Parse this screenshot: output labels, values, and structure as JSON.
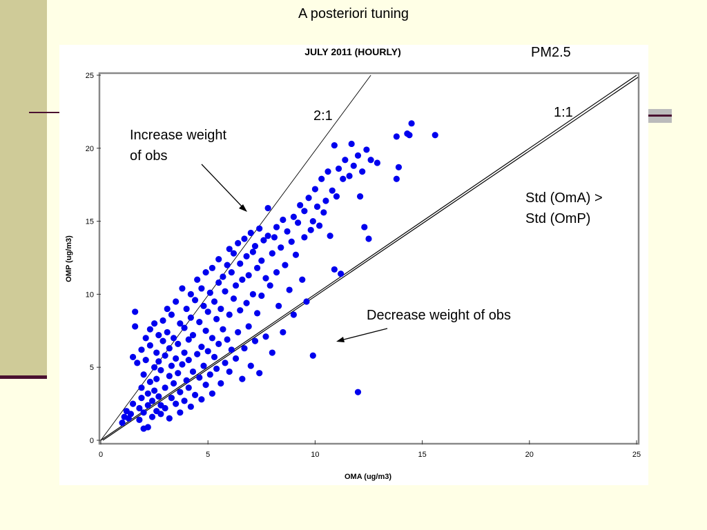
{
  "slide": {
    "title": "A posteriori tuning",
    "species_label": "PM2.5"
  },
  "annotations": {
    "ratio_2_1": "2:1",
    "ratio_1_1": "1:1",
    "increase_line1": "Increase weight",
    "increase_line2": "of obs",
    "decrease": "Decrease weight of obs",
    "std_line1": "Std (OmA) >",
    "std_line2": "Std (OmP)"
  },
  "colors": {
    "points": "#0000ee",
    "background": "#ffffe6",
    "accent": "#cfcb98",
    "deco": "#4a1030"
  },
  "chart_data": {
    "type": "scatter",
    "title": "JULY 2011  (HOURLY)",
    "xlabel": "OMA (ug/m3)",
    "ylabel": "OMP (ug/m3)",
    "xlim": [
      0,
      25
    ],
    "ylim": [
      0,
      25
    ],
    "xticks": [
      "0",
      "5",
      "10",
      "15",
      "20",
      "25"
    ],
    "yticks": [
      "0",
      "5",
      "10",
      "15",
      "20",
      "25"
    ],
    "reference_lines": [
      {
        "label": "1:1",
        "slope": 1
      },
      {
        "label": "2:1",
        "slope": 2
      }
    ],
    "points": [
      [
        1.0,
        1.2
      ],
      [
        1.1,
        1.6
      ],
      [
        1.2,
        2.0
      ],
      [
        1.3,
        1.5
      ],
      [
        1.4,
        1.8
      ],
      [
        1.5,
        2.5
      ],
      [
        1.5,
        5.7
      ],
      [
        1.6,
        8.8
      ],
      [
        1.6,
        7.8
      ],
      [
        1.7,
        5.3
      ],
      [
        1.8,
        1.4
      ],
      [
        1.8,
        2.2
      ],
      [
        1.9,
        2.9
      ],
      [
        1.9,
        3.6
      ],
      [
        1.9,
        6.2
      ],
      [
        2.0,
        0.8
      ],
      [
        2.0,
        1.9
      ],
      [
        2.0,
        4.5
      ],
      [
        2.1,
        5.5
      ],
      [
        2.1,
        7.0
      ],
      [
        2.2,
        0.9
      ],
      [
        2.2,
        2.4
      ],
      [
        2.2,
        3.2
      ],
      [
        2.3,
        4.0
      ],
      [
        2.3,
        6.5
      ],
      [
        2.3,
        7.6
      ],
      [
        2.4,
        1.6
      ],
      [
        2.4,
        2.7
      ],
      [
        2.5,
        3.4
      ],
      [
        2.5,
        5.0
      ],
      [
        2.5,
        8.0
      ],
      [
        2.6,
        2.0
      ],
      [
        2.6,
        4.2
      ],
      [
        2.6,
        6.0
      ],
      [
        2.7,
        3.0
      ],
      [
        2.7,
        5.4
      ],
      [
        2.7,
        7.2
      ],
      [
        2.8,
        1.8
      ],
      [
        2.8,
        2.4
      ],
      [
        2.8,
        4.8
      ],
      [
        2.9,
        6.8
      ],
      [
        2.9,
        8.2
      ],
      [
        3.0,
        2.2
      ],
      [
        3.0,
        3.6
      ],
      [
        3.0,
        5.8
      ],
      [
        3.1,
        7.4
      ],
      [
        3.1,
        9.0
      ],
      [
        3.2,
        1.5
      ],
      [
        3.2,
        4.4
      ],
      [
        3.2,
        6.3
      ],
      [
        3.3,
        2.9
      ],
      [
        3.3,
        5.1
      ],
      [
        3.3,
        8.6
      ],
      [
        3.4,
        3.9
      ],
      [
        3.4,
        7.0
      ],
      [
        3.5,
        2.5
      ],
      [
        3.5,
        5.6
      ],
      [
        3.5,
        9.5
      ],
      [
        3.6,
        4.6
      ],
      [
        3.6,
        6.6
      ],
      [
        3.7,
        1.9
      ],
      [
        3.7,
        3.3
      ],
      [
        3.7,
        8.0
      ],
      [
        3.8,
        5.2
      ],
      [
        3.8,
        10.4
      ],
      [
        3.9,
        2.7
      ],
      [
        3.9,
        6.0
      ],
      [
        3.9,
        7.7
      ],
      [
        4.0,
        4.1
      ],
      [
        4.0,
        9.0
      ],
      [
        4.1,
        3.6
      ],
      [
        4.1,
        5.5
      ],
      [
        4.1,
        6.9
      ],
      [
        4.2,
        2.3
      ],
      [
        4.2,
        8.4
      ],
      [
        4.2,
        10.0
      ],
      [
        4.3,
        4.7
      ],
      [
        4.3,
        7.2
      ],
      [
        4.4,
        3.1
      ],
      [
        4.4,
        9.6
      ],
      [
        4.5,
        5.9
      ],
      [
        4.5,
        11.0
      ],
      [
        4.6,
        4.3
      ],
      [
        4.6,
        8.1
      ],
      [
        4.7,
        2.8
      ],
      [
        4.7,
        6.4
      ],
      [
        4.7,
        10.4
      ],
      [
        4.8,
        5.1
      ],
      [
        4.8,
        9.2
      ],
      [
        4.9,
        3.8
      ],
      [
        4.9,
        7.5
      ],
      [
        4.9,
        11.5
      ],
      [
        5.0,
        6.1
      ],
      [
        5.0,
        8.8
      ],
      [
        5.1,
        4.5
      ],
      [
        5.1,
        10.1
      ],
      [
        5.2,
        3.2
      ],
      [
        5.2,
        7.0
      ],
      [
        5.2,
        11.8
      ],
      [
        5.3,
        5.7
      ],
      [
        5.3,
        9.5
      ],
      [
        5.4,
        4.9
      ],
      [
        5.4,
        8.3
      ],
      [
        5.5,
        6.6
      ],
      [
        5.5,
        10.8
      ],
      [
        5.5,
        12.4
      ],
      [
        5.6,
        3.9
      ],
      [
        5.6,
        9.0
      ],
      [
        5.7,
        7.6
      ],
      [
        5.7,
        11.2
      ],
      [
        5.8,
        5.3
      ],
      [
        5.8,
        10.2
      ],
      [
        5.9,
        6.9
      ],
      [
        5.9,
        12.0
      ],
      [
        6.0,
        4.7
      ],
      [
        6.0,
        8.6
      ],
      [
        6.0,
        13.1
      ],
      [
        6.1,
        6.2
      ],
      [
        6.1,
        11.5
      ],
      [
        6.2,
        9.7
      ],
      [
        6.2,
        12.8
      ],
      [
        6.3,
        5.6
      ],
      [
        6.3,
        10.6
      ],
      [
        6.4,
        7.4
      ],
      [
        6.4,
        13.5
      ],
      [
        6.5,
        8.9
      ],
      [
        6.5,
        12.1
      ],
      [
        6.6,
        4.2
      ],
      [
        6.6,
        11.0
      ],
      [
        6.7,
        6.3
      ],
      [
        6.7,
        13.8
      ],
      [
        6.8,
        9.4
      ],
      [
        6.8,
        12.6
      ],
      [
        6.9,
        7.8
      ],
      [
        6.9,
        11.3
      ],
      [
        7.0,
        5.1
      ],
      [
        7.0,
        14.2
      ],
      [
        7.1,
        10.0
      ],
      [
        7.1,
        12.9
      ],
      [
        7.2,
        6.8
      ],
      [
        7.2,
        13.3
      ],
      [
        7.3,
        8.7
      ],
      [
        7.3,
        11.8
      ],
      [
        7.4,
        14.5
      ],
      [
        7.4,
        4.6
      ],
      [
        7.5,
        12.3
      ],
      [
        7.5,
        9.9
      ],
      [
        7.6,
        13.7
      ],
      [
        7.7,
        7.1
      ],
      [
        7.7,
        11.1
      ],
      [
        7.8,
        14.0
      ],
      [
        7.8,
        15.9
      ],
      [
        7.9,
        10.6
      ],
      [
        8.0,
        12.8
      ],
      [
        8.0,
        6.0
      ],
      [
        8.1,
        13.9
      ],
      [
        8.2,
        11.5
      ],
      [
        8.2,
        14.6
      ],
      [
        8.3,
        9.2
      ],
      [
        8.4,
        13.2
      ],
      [
        8.5,
        15.1
      ],
      [
        8.5,
        7.4
      ],
      [
        8.6,
        12.0
      ],
      [
        8.7,
        14.3
      ],
      [
        8.8,
        10.3
      ],
      [
        8.9,
        13.6
      ],
      [
        9.0,
        15.3
      ],
      [
        9.0,
        8.6
      ],
      [
        9.1,
        12.7
      ],
      [
        9.2,
        14.9
      ],
      [
        9.3,
        16.1
      ],
      [
        9.4,
        11.0
      ],
      [
        9.5,
        13.9
      ],
      [
        9.5,
        15.7
      ],
      [
        9.6,
        9.5
      ],
      [
        9.7,
        16.6
      ],
      [
        9.8,
        14.4
      ],
      [
        9.9,
        15.0
      ],
      [
        9.9,
        5.8
      ],
      [
        10.0,
        17.2
      ],
      [
        10.1,
        16.0
      ],
      [
        10.2,
        14.7
      ],
      [
        10.3,
        17.9
      ],
      [
        10.4,
        15.6
      ],
      [
        10.5,
        16.4
      ],
      [
        10.6,
        18.4
      ],
      [
        10.7,
        14.0
      ],
      [
        10.8,
        17.1
      ],
      [
        10.9,
        11.7
      ],
      [
        10.9,
        20.2
      ],
      [
        11.0,
        16.7
      ],
      [
        11.1,
        18.6
      ],
      [
        11.2,
        11.4
      ],
      [
        11.3,
        17.9
      ],
      [
        11.4,
        19.2
      ],
      [
        11.6,
        18.1
      ],
      [
        11.7,
        20.3
      ],
      [
        11.8,
        18.8
      ],
      [
        12.0,
        19.5
      ],
      [
        12.0,
        3.3
      ],
      [
        12.1,
        16.7
      ],
      [
        12.2,
        18.4
      ],
      [
        12.3,
        14.6
      ],
      [
        12.4,
        19.9
      ],
      [
        12.5,
        13.8
      ],
      [
        12.6,
        19.2
      ],
      [
        12.9,
        19.0
      ],
      [
        13.8,
        17.9
      ],
      [
        13.8,
        20.8
      ],
      [
        13.9,
        18.7
      ],
      [
        14.3,
        21.0
      ],
      [
        14.4,
        20.9
      ],
      [
        14.5,
        21.7
      ],
      [
        15.6,
        20.9
      ]
    ]
  }
}
